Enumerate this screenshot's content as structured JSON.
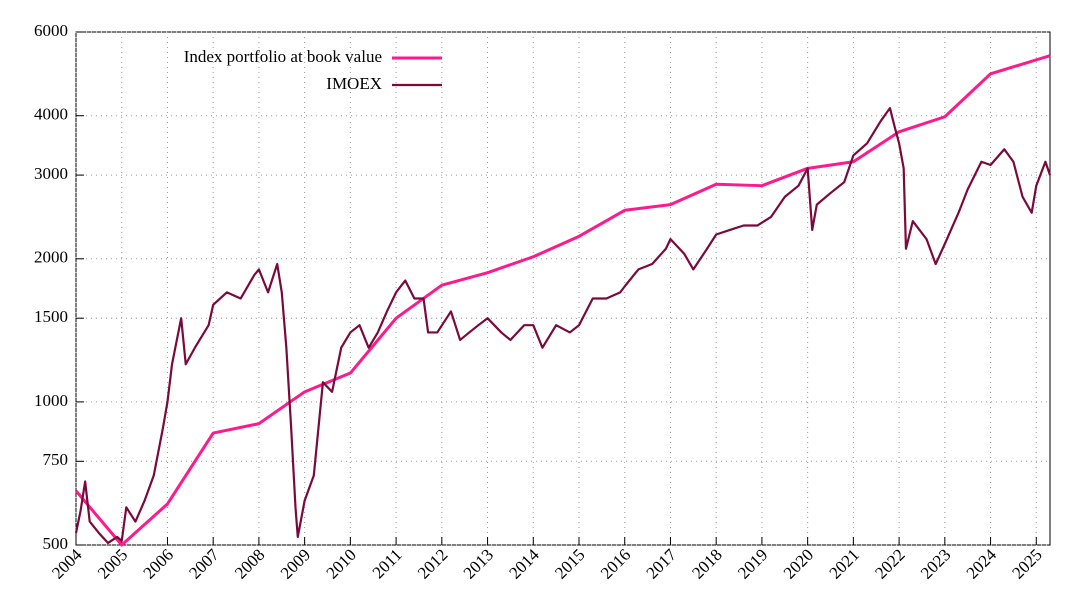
{
  "chart_data": {
    "type": "line",
    "log_y": true,
    "grid": true,
    "legend": "top-left",
    "xlim": [
      2004,
      2025.3
    ],
    "xticks": [
      2004,
      2005,
      2006,
      2007,
      2008,
      2009,
      2010,
      2011,
      2012,
      2013,
      2014,
      2015,
      2016,
      2017,
      2018,
      2019,
      2020,
      2021,
      2022,
      2023,
      2024,
      2025
    ],
    "ylim": [
      500,
      6000
    ],
    "yticks": [
      500,
      750,
      1000,
      1500,
      2000,
      3000,
      4000,
      6000
    ],
    "series": [
      {
        "name": "Index portfolio at book value",
        "color": "#ff1a8c",
        "x": [
          2004,
          2005,
          2006,
          2007,
          2008,
          2009,
          2010,
          2011,
          2012,
          2013,
          2014,
          2015,
          2016,
          2017,
          2018,
          2019,
          2020,
          2021,
          2022,
          2023,
          2024,
          2025.3
        ],
        "values": [
          650,
          500,
          610,
          860,
          900,
          1050,
          1150,
          1500,
          1760,
          1870,
          2020,
          2230,
          2530,
          2600,
          2870,
          2850,
          3100,
          3200,
          3700,
          3980,
          4900,
          5350
        ]
      },
      {
        "name": "IMOEX",
        "color": "#7a0a3c",
        "x": [
          2004,
          2004.1,
          2004.2,
          2004.3,
          2004.5,
          2004.7,
          2004.9,
          2005,
          2005.1,
          2005.3,
          2005.5,
          2005.7,
          2005.9,
          2006,
          2006.1,
          2006.3,
          2006.4,
          2006.6,
          2006.9,
          2007,
          2007.3,
          2007.6,
          2007.9,
          2008,
          2008.2,
          2008.4,
          2008.5,
          2008.6,
          2008.7,
          2008.8,
          2008.85,
          2009,
          2009.2,
          2009.4,
          2009.6,
          2009.8,
          2010,
          2010.2,
          2010.4,
          2010.6,
          2010.8,
          2011,
          2011.2,
          2011.4,
          2011.6,
          2011.7,
          2011.9,
          2012.2,
          2012.4,
          2012.6,
          2012.8,
          2013,
          2013.3,
          2013.5,
          2013.8,
          2014,
          2014.2,
          2014.5,
          2014.8,
          2015,
          2015.3,
          2015.6,
          2015.9,
          2016,
          2016.3,
          2016.6,
          2016.9,
          2017,
          2017.3,
          2017.5,
          2017.8,
          2018,
          2018.3,
          2018.6,
          2018.9,
          2019.2,
          2019.5,
          2019.8,
          2020,
          2020.1,
          2020.2,
          2020.5,
          2020.8,
          2021,
          2021.3,
          2021.6,
          2021.8,
          2021.9,
          2022,
          2022.1,
          2022.15,
          2022.3,
          2022.6,
          2022.8,
          2023,
          2023.3,
          2023.5,
          2023.8,
          2024,
          2024.3,
          2024.5,
          2024.7,
          2024.9,
          2025,
          2025.2,
          2025.3
        ],
        "values": [
          530,
          590,
          680,
          560,
          530,
          505,
          520,
          510,
          600,
          560,
          620,
          700,
          880,
          1000,
          1200,
          1500,
          1200,
          1300,
          1450,
          1600,
          1700,
          1650,
          1850,
          1900,
          1700,
          1950,
          1700,
          1300,
          900,
          600,
          520,
          620,
          700,
          1100,
          1050,
          1300,
          1400,
          1450,
          1300,
          1400,
          1550,
          1700,
          1800,
          1650,
          1650,
          1400,
          1400,
          1550,
          1350,
          1400,
          1450,
          1500,
          1400,
          1350,
          1450,
          1450,
          1300,
          1450,
          1400,
          1450,
          1650,
          1650,
          1700,
          1750,
          1900,
          1950,
          2100,
          2200,
          2050,
          1900,
          2100,
          2250,
          2300,
          2350,
          2350,
          2450,
          2700,
          2850,
          3100,
          2300,
          2600,
          2750,
          2900,
          3300,
          3500,
          3900,
          4150,
          3800,
          3500,
          3100,
          2100,
          2400,
          2200,
          1950,
          2150,
          2500,
          2800,
          3200,
          3150,
          3400,
          3200,
          2700,
          2500,
          2850,
          3200,
          3000
        ]
      }
    ]
  }
}
